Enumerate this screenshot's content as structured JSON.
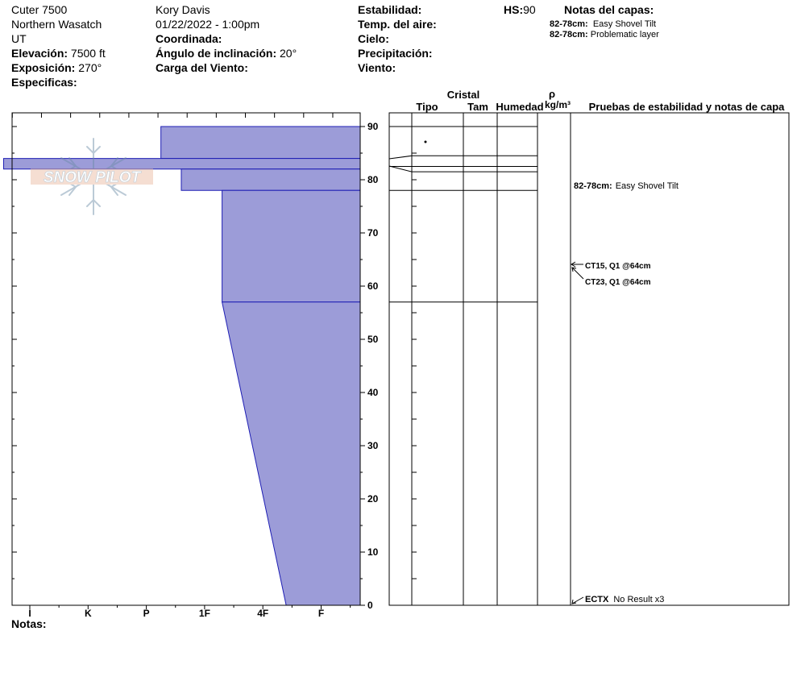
{
  "header": {
    "location": "Cuter 7500",
    "range": "Northern Wasatch",
    "state": "UT",
    "elevation_label": "Elevación:",
    "elevation_value": "7500 ft",
    "aspect_label": "Exposición:",
    "aspect_value": "270°",
    "specifics_label": "Especificas:",
    "observer": "Kory Davis",
    "datetime": "01/22/2022 - 1:00pm",
    "coordinate_label": "Coordinada:",
    "slope_label": "Ángulo de inclinación:",
    "slope_value": "20°",
    "wind_loading_label": "Carga del Viento:",
    "stability_label": "Estabilidad:",
    "air_temp_label": "Temp. del aire:",
    "sky_label": "Cielo:",
    "precip_label": "Precipitación:",
    "wind_label": "Viento:",
    "hs_label": "HS:",
    "hs_value": "90",
    "layer_notes_title": "Notas del capas:",
    "layer_notes": [
      {
        "range": "82-78cm:",
        "text": "Easy Shovel Tilt"
      },
      {
        "range": "82-78cm:",
        "text": "Problematic layer"
      }
    ]
  },
  "logo_text": "SNOW PILOT",
  "columns": {
    "crystal": "Cristal",
    "type": "Tipo",
    "size": "Tam",
    "moisture": "Humedad",
    "density_symbol": "ρ",
    "density_unit": "kg/m³",
    "tests": "Pruebas de estabilidad y notas de capa"
  },
  "notes_label": "Notas:",
  "colors": {
    "layer_fill": "#9c9cd8",
    "layer_stroke": "#1e1eb4"
  },
  "chart_data": {
    "type": "area",
    "title": "",
    "xlabel": "",
    "ylabel": "",
    "hardness_scale": [
      "I",
      "K",
      "P",
      "1F",
      "4F",
      "F"
    ],
    "ylim": [
      0,
      90
    ],
    "y_ticks": [
      0,
      10,
      20,
      30,
      40,
      50,
      60,
      70,
      80,
      90
    ],
    "layers": [
      {
        "top": 90,
        "bottom": 84,
        "hardness_index": 2.25
      },
      {
        "top": 84,
        "bottom": 82,
        "hardness_index": -0.45
      },
      {
        "top": 82,
        "bottom": 78,
        "hardness_index": 2.6
      },
      {
        "top": 78,
        "bottom": 57,
        "hardness_index": 3.3
      },
      {
        "top": 57,
        "bottom": 0,
        "hardness_index_top": 3.3,
        "hardness_index_bottom": 4.4
      }
    ],
    "layer_boundaries": [
      90,
      84.5,
      82.5,
      81.5,
      78,
      57
    ],
    "tests": [
      {
        "depth": 82,
        "label": "82-78cm:",
        "text": "Easy Shovel Tilt"
      },
      {
        "depth": 64,
        "label": "CT15, Q1 @64cm"
      },
      {
        "depth": 61,
        "label": "CT23, Q1 @64cm"
      },
      {
        "depth": 0,
        "label": "ECTX",
        "text": "No Result x3"
      }
    ]
  }
}
